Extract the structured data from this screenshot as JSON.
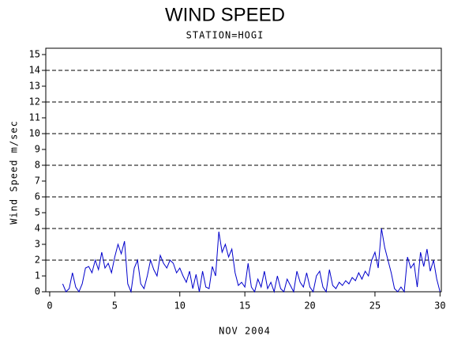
{
  "chart_data": {
    "type": "line",
    "title": "WIND SPEED",
    "subtitle": "STATION=HOGI",
    "x_label": "NOV 2004",
    "y_label": "Wind Speed m/sec",
    "xlim": [
      -0.3,
      30.1
    ],
    "ylim": [
      0,
      15.4
    ],
    "xticks": [
      0,
      5,
      10,
      15,
      20,
      25,
      30
    ],
    "yticks": [
      0,
      1,
      2,
      3,
      4,
      5,
      6,
      7,
      8,
      9,
      10,
      11,
      12,
      13,
      14,
      15
    ],
    "ygrid": [
      0,
      2,
      4,
      6,
      8,
      10,
      12,
      14
    ],
    "series": [
      {
        "color": "#0000cc",
        "x": [
          1,
          1.25,
          1.5,
          1.75,
          2,
          2.25,
          2.5,
          2.75,
          3,
          3.25,
          3.5,
          3.75,
          4,
          4.25,
          4.5,
          4.75,
          5,
          5.25,
          5.5,
          5.75,
          6,
          6.25,
          6.5,
          6.75,
          7,
          7.25,
          7.5,
          7.75,
          8,
          8.25,
          8.5,
          8.75,
          9,
          9.25,
          9.5,
          9.75,
          10,
          10.25,
          10.5,
          10.75,
          11,
          11.25,
          11.5,
          11.75,
          12,
          12.25,
          12.5,
          12.75,
          13,
          13.25,
          13.5,
          13.75,
          14,
          14.25,
          14.5,
          14.75,
          15,
          15.25,
          15.5,
          15.75,
          16,
          16.25,
          16.5,
          16.75,
          17,
          17.25,
          17.5,
          17.75,
          18,
          18.25,
          18.5,
          18.75,
          19,
          19.25,
          19.5,
          19.75,
          20,
          20.25,
          20.5,
          20.75,
          21,
          21.25,
          21.5,
          21.75,
          22,
          22.25,
          22.5,
          22.75,
          23,
          23.25,
          23.5,
          23.75,
          24,
          24.25,
          24.5,
          24.75,
          25,
          25.25,
          25.5,
          25.75,
          26,
          26.25,
          26.5,
          26.75,
          27,
          27.25,
          27.5,
          27.75,
          28,
          28.25,
          28.5,
          28.75,
          29,
          29.25,
          29.5,
          29.75,
          30
        ],
        "values": [
          0.5,
          0,
          0.2,
          1.2,
          0.3,
          0,
          0.5,
          1.5,
          1.6,
          1.2,
          2.0,
          1.4,
          2.5,
          1.5,
          1.8,
          1.2,
          2.2,
          3.0,
          2.4,
          3.2,
          0.5,
          0,
          1.5,
          2.0,
          0.5,
          0.2,
          1.0,
          2.0,
          1.4,
          1.0,
          2.3,
          1.8,
          1.5,
          2.0,
          1.8,
          1.2,
          1.5,
          1.0,
          0.6,
          1.3,
          0.2,
          1.1,
          0,
          1.3,
          0.3,
          0.2,
          1.6,
          1.0,
          3.8,
          2.5,
          3.0,
          2.2,
          2.7,
          1.2,
          0.4,
          0.6,
          0.3,
          1.8,
          0.3,
          0,
          0.8,
          0.3,
          1.3,
          0.2,
          0.6,
          0,
          1.0,
          0.2,
          0,
          0.8,
          0.4,
          0,
          1.3,
          0.6,
          0.3,
          1.2,
          0.3,
          0,
          1.0,
          1.3,
          0.3,
          0,
          1.4,
          0.4,
          0.2,
          0.6,
          0.4,
          0.7,
          0.5,
          0.9,
          0.7,
          1.2,
          0.8,
          1.3,
          1.0,
          2.0,
          2.5,
          1.5,
          4.0,
          2.8,
          2.0,
          1.2,
          0.2,
          0,
          0.3,
          0,
          2.2,
          1.5,
          1.8,
          0.3,
          2.5,
          1.6,
          2.7,
          1.3,
          2.0,
          0.8,
          0
        ]
      }
    ]
  }
}
